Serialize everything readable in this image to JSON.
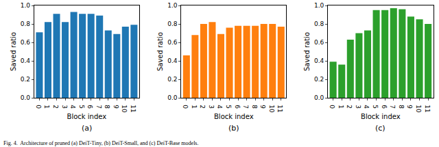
{
  "chart_data": [
    {
      "type": "bar",
      "subtitle": "(a)",
      "x_label": "Block index",
      "y_label": "Saved ratio",
      "categories": [
        "0",
        "1",
        "2",
        "3",
        "4",
        "5",
        "6",
        "7",
        "8",
        "9",
        "10",
        "11"
      ],
      "values": [
        0.71,
        0.82,
        0.91,
        0.82,
        0.93,
        0.91,
        0.91,
        0.89,
        0.73,
        0.69,
        0.77,
        0.79
      ],
      "color": "#1f77b4",
      "ylim": [
        0,
        1
      ],
      "yticks": [
        {
          "value": 0,
          "label": "0.0"
        },
        0.2,
        0.4,
        0.6,
        0.8,
        {
          "value": 1,
          "label": "1.0"
        }
      ]
    },
    {
      "type": "bar",
      "subtitle": "(b)",
      "x_label": "Block index",
      "y_label": "Saved ratio",
      "categories": [
        "0",
        "1",
        "2",
        "3",
        "4",
        "5",
        "6",
        "7",
        "8",
        "9",
        "10",
        "11"
      ],
      "values": [
        0.46,
        0.68,
        0.8,
        0.82,
        0.69,
        0.76,
        0.78,
        0.78,
        0.78,
        0.8,
        0.8,
        0.77
      ],
      "color": "#ff7f0e",
      "ylim": [
        0,
        1
      ],
      "yticks": [
        {
          "value": 0,
          "label": "0.0"
        },
        0.2,
        0.4,
        0.6,
        0.8,
        {
          "value": 1,
          "label": "1.0"
        }
      ]
    },
    {
      "type": "bar",
      "subtitle": "(c)",
      "x_label": "Block index",
      "y_label": "Saved ratio",
      "categories": [
        "0",
        "1",
        "2",
        "3",
        "4",
        "5",
        "6",
        "7",
        "8",
        "9",
        "10",
        "11"
      ],
      "values": [
        0.39,
        0.36,
        0.63,
        0.7,
        0.73,
        0.95,
        0.95,
        0.97,
        0.96,
        0.88,
        0.85,
        0.8
      ],
      "color": "#2ca02c",
      "ylim": [
        0,
        1
      ],
      "yticks": [
        {
          "value": 0,
          "label": "0.0"
        },
        0.2,
        0.4,
        0.6,
        0.8,
        {
          "value": 1,
          "label": "1.0"
        }
      ]
    }
  ],
  "caption": "Fig. 4.  Architecture of pruned (a) DeiT-Tiny, (b) DeiT-Small, and (c) DeiT-Base models."
}
